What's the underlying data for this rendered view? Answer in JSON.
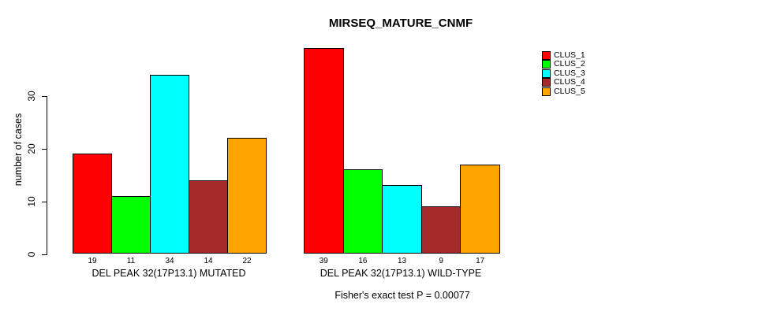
{
  "title": "MIRSEQ_MATURE_CNMF",
  "chart_data": {
    "type": "bar",
    "title": "MIRSEQ_MATURE_CNMF",
    "ylabel": "number of cases",
    "ylim": [
      0,
      39
    ],
    "yticks": [
      0,
      10,
      20,
      30
    ],
    "grid": false,
    "legend": {
      "position": "right",
      "entries": [
        {
          "label": "CLUS_1",
          "color": "#FF0000"
        },
        {
          "label": "CLUS_2",
          "color": "#00FF00"
        },
        {
          "label": "CLUS_3",
          "color": "#00FFFF"
        },
        {
          "label": "CLUS_4",
          "color": "#A52A2A"
        },
        {
          "label": "CLUS_5",
          "color": "#FFA500"
        }
      ]
    },
    "plots": [
      {
        "xlabel": "DEL PEAK 32(17P13.1) MUTATED",
        "categories": [
          "CLUS_1",
          "CLUS_2",
          "CLUS_3",
          "CLUS_4",
          "CLUS_5"
        ],
        "values": [
          19,
          11,
          34,
          14,
          22
        ]
      },
      {
        "xlabel": "DEL PEAK 32(17P13.1) WILD-TYPE",
        "categories": [
          "CLUS_1",
          "CLUS_2",
          "CLUS_3",
          "CLUS_4",
          "CLUS_5"
        ],
        "values": [
          39,
          16,
          13,
          9,
          17
        ]
      }
    ],
    "annotation": "Fisher's exact test P = 0.00077"
  }
}
